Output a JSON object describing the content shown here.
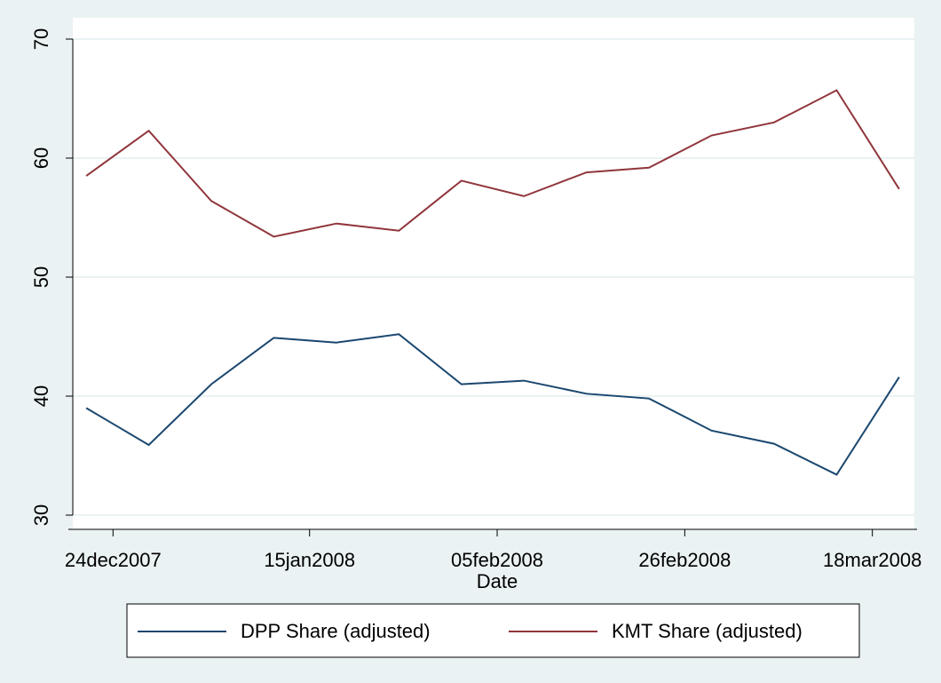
{
  "chart_data": {
    "type": "line",
    "x_label": "Date",
    "x": [
      "21dec2007",
      "28dec2007",
      "04jan2008",
      "11jan2008",
      "18jan2008",
      "25jan2008",
      "01feb2008",
      "08feb2008",
      "15feb2008",
      "22feb2008",
      "29feb2008",
      "07mar2008",
      "14mar2008",
      "21mar2008"
    ],
    "series": [
      {
        "name": "DPP Share (adjusted)",
        "color": "#1a476f",
        "values": [
          39.0,
          35.9,
          41.0,
          44.9,
          44.5,
          45.2,
          41.0,
          41.3,
          40.2,
          39.8,
          37.1,
          36.0,
          33.4,
          41.6
        ]
      },
      {
        "name": "KMT Share (adjusted)",
        "color": "#90353b",
        "values": [
          58.5,
          62.3,
          56.4,
          53.4,
          54.5,
          53.9,
          58.1,
          56.8,
          58.8,
          59.2,
          61.9,
          63.0,
          65.7,
          57.4
        ]
      }
    ],
    "xlim": [
      "19dec2007",
      "23mar2008"
    ],
    "xticks": [
      "24dec2007",
      "15jan2008",
      "05feb2008",
      "26feb2008",
      "18mar2008"
    ],
    "ylim": [
      30,
      70
    ],
    "yticks": [
      30,
      40,
      50,
      60,
      70
    ],
    "grid": true,
    "legend": "bottom"
  }
}
